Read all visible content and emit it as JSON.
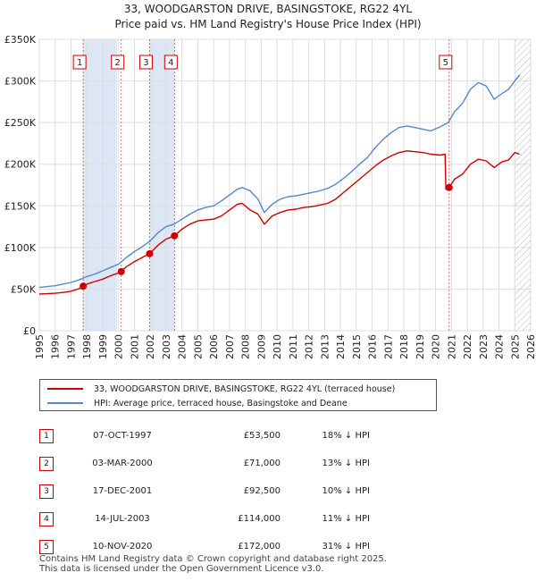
{
  "chart_data": {
    "type": "line",
    "title": "33, WOODGARSTON DRIVE, BASINGSTOKE, RG22 4YL",
    "subtitle": "Price paid vs. HM Land Registry's House Price Index (HPI)",
    "xlabel": "",
    "ylabel": "",
    "xlim": [
      1995,
      2026
    ],
    "ylim": [
      0,
      350000
    ],
    "x_ticks": [
      1995,
      1996,
      1997,
      1998,
      1999,
      2000,
      2001,
      2002,
      2003,
      2004,
      2005,
      2006,
      2007,
      2008,
      2009,
      2010,
      2011,
      2012,
      2013,
      2014,
      2015,
      2016,
      2017,
      2018,
      2019,
      2020,
      2021,
      2022,
      2023,
      2024,
      2025,
      2026
    ],
    "y_ticks": [
      {
        "value": 0,
        "label": "£0"
      },
      {
        "value": 50000,
        "label": "£50K"
      },
      {
        "value": 100000,
        "label": "£100K"
      },
      {
        "value": 150000,
        "label": "£150K"
      },
      {
        "value": 200000,
        "label": "£200K"
      },
      {
        "value": 250000,
        "label": "£250K"
      },
      {
        "value": 300000,
        "label": "£300K"
      },
      {
        "value": 350000,
        "label": "£350K"
      }
    ],
    "grid": true,
    "shaded_periods": [
      [
        1997.77,
        1999.9
      ],
      [
        2001.96,
        2003.53
      ]
    ],
    "forecast_from": 2025.0,
    "series": [
      {
        "name": "33, WOODGARSTON DRIVE, BASINGSTOKE, RG22 4YL (terraced house)",
        "color": "#cc0000",
        "x": [
          1995.0,
          1995.5,
          1996.0,
          1996.5,
          1997.0,
          1997.5,
          1997.77,
          1998.0,
          1998.5,
          1999.0,
          1999.5,
          2000.0,
          2000.17,
          2000.5,
          2001.0,
          2001.5,
          2001.96,
          2002.5,
          2003.0,
          2003.53,
          2004.0,
          2004.5,
          2005.0,
          2005.5,
          2006.0,
          2006.5,
          2007.0,
          2007.5,
          2007.8,
          2008.3,
          2008.8,
          2009.2,
          2009.7,
          2010.2,
          2010.7,
          2011.2,
          2011.7,
          2012.2,
          2012.7,
          2013.2,
          2013.7,
          2014.2,
          2014.7,
          2015.2,
          2015.7,
          2016.2,
          2016.7,
          2017.2,
          2017.7,
          2018.2,
          2018.7,
          2019.2,
          2019.7,
          2020.3,
          2020.6,
          2020.65,
          2020.86,
          2021.2,
          2021.7,
          2022.2,
          2022.7,
          2023.2,
          2023.7,
          2024.2,
          2024.6,
          2025.0,
          2025.3
        ],
        "y": [
          44000,
          44500,
          45000,
          46000,
          47500,
          50500,
          53500,
          56000,
          59000,
          62000,
          66000,
          69500,
          71000,
          77000,
          83000,
          88000,
          92500,
          103000,
          110000,
          114000,
          122000,
          128000,
          132000,
          133000,
          134000,
          138000,
          145000,
          152000,
          153000,
          145000,
          140000,
          128000,
          138000,
          142000,
          145000,
          146000,
          148000,
          149000,
          151000,
          153000,
          158000,
          166000,
          174000,
          182000,
          190000,
          198000,
          205000,
          210000,
          214000,
          216000,
          215000,
          214000,
          212000,
          211000,
          212000,
          170000,
          172000,
          182000,
          188000,
          200000,
          206000,
          204000,
          196000,
          203000,
          205000,
          214000,
          212000
        ]
      },
      {
        "name": "HPI: Average price, terraced house, Basingstoke and Deane",
        "color": "#5588cc",
        "x": [
          1995.0,
          1995.5,
          1996.0,
          1996.5,
          1997.0,
          1997.5,
          1998.0,
          1998.5,
          1999.0,
          1999.5,
          2000.0,
          2000.5,
          2001.0,
          2001.5,
          2002.0,
          2002.5,
          2003.0,
          2003.5,
          2004.0,
          2004.5,
          2005.0,
          2005.5,
          2006.0,
          2006.5,
          2007.0,
          2007.5,
          2007.8,
          2008.3,
          2008.8,
          2009.2,
          2009.7,
          2010.2,
          2010.7,
          2011.2,
          2011.7,
          2012.2,
          2012.7,
          2013.2,
          2013.7,
          2014.2,
          2014.7,
          2015.2,
          2015.7,
          2016.2,
          2016.7,
          2017.2,
          2017.7,
          2018.2,
          2018.7,
          2019.2,
          2019.7,
          2020.3,
          2020.8,
          2021.2,
          2021.7,
          2022.2,
          2022.7,
          2023.2,
          2023.7,
          2024.2,
          2024.6,
          2025.0,
          2025.3
        ],
        "y": [
          52000,
          53000,
          54000,
          56000,
          58000,
          61000,
          65000,
          68000,
          72000,
          76000,
          80000,
          88000,
          95000,
          101000,
          108000,
          118000,
          125000,
          128000,
          134000,
          140000,
          145000,
          148000,
          150000,
          156000,
          163000,
          170000,
          172000,
          168000,
          158000,
          142000,
          152000,
          158000,
          161000,
          162000,
          164000,
          166000,
          168000,
          171000,
          176000,
          183000,
          191000,
          200000,
          208000,
          220000,
          230000,
          238000,
          244000,
          246000,
          244000,
          242000,
          240000,
          245000,
          250000,
          263000,
          273000,
          290000,
          298000,
          294000,
          278000,
          285000,
          290000,
          300000,
          307000
        ]
      }
    ],
    "sales": [
      {
        "n": "1",
        "x": 1997.77,
        "y": 53500
      },
      {
        "n": "2",
        "x": 2000.17,
        "y": 71000
      },
      {
        "n": "3",
        "x": 2001.96,
        "y": 92500
      },
      {
        "n": "4",
        "x": 2003.53,
        "y": 114000
      },
      {
        "n": "5",
        "x": 2020.86,
        "y": 172000
      }
    ]
  },
  "legend": {
    "property_label": "33, WOODGARSTON DRIVE, BASINGSTOKE, RG22 4YL (terraced house)",
    "hpi_label": "HPI: Average price, terraced house, Basingstoke and Deane"
  },
  "transactions": [
    {
      "n": "1",
      "date": "07-OCT-1997",
      "price": "£53,500",
      "hpi": "18% ↓ HPI"
    },
    {
      "n": "2",
      "date": "03-MAR-2000",
      "price": "£71,000",
      "hpi": "13% ↓ HPI"
    },
    {
      "n": "3",
      "date": "17-DEC-2001",
      "price": "£92,500",
      "hpi": "10% ↓ HPI"
    },
    {
      "n": "4",
      "date": "14-JUL-2003",
      "price": "£114,000",
      "hpi": "11% ↓ HPI"
    },
    {
      "n": "5",
      "date": "10-NOV-2020",
      "price": "£172,000",
      "hpi": "31% ↓ HPI"
    }
  ],
  "footer": {
    "line1": "Contains HM Land Registry data © Crown copyright and database right 2025.",
    "line2": "This data is licensed under the Open Government Licence v3.0."
  }
}
